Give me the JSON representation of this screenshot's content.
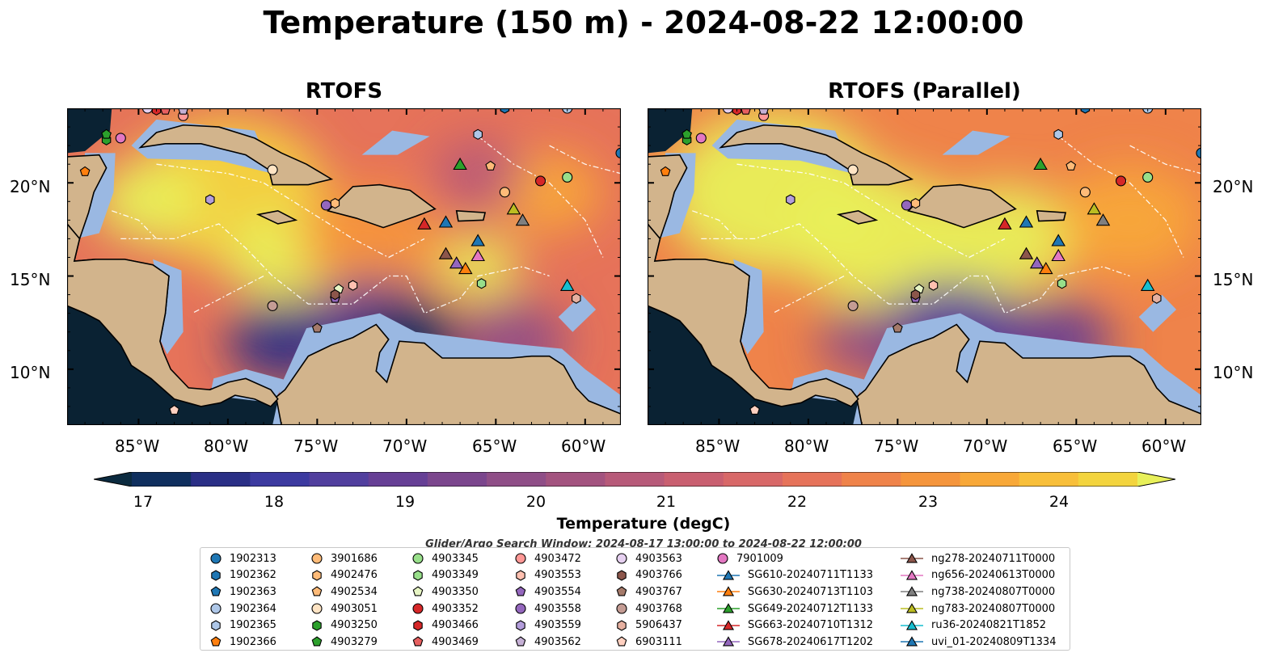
{
  "title": "Temperature (150 m) - 2024-08-22 12:00:00",
  "panels": [
    {
      "title": "RTOFS"
    },
    {
      "title": "RTOFS (Parallel)"
    }
  ],
  "colors": {
    "land": "#d2b48c",
    "shelf": "#9ab8e2",
    "deep": "#0a2233"
  },
  "colorbar": {
    "label": "Temperature (degC)",
    "min": 16.5,
    "max": 24.5,
    "ticks": [
      "17",
      "18",
      "19",
      "20",
      "21",
      "22",
      "23",
      "24"
    ],
    "colors": [
      "#0b2a3f",
      "#0f2f5e",
      "#2a2f86",
      "#3c3aa0",
      "#513f9e",
      "#663f95",
      "#7b468d",
      "#8f4e87",
      "#a3537f",
      "#b75a79",
      "#c95f70",
      "#d86868",
      "#e6735a",
      "#ef834a",
      "#f5953c",
      "#f8a838",
      "#f8bf3a",
      "#f3d43e",
      "#e8f05a"
    ]
  },
  "search_window": "Glider/Argo Search Window: 2024-08-17 13:00:00 to 2024-08-22 12:00:00",
  "chart_data": [
    {
      "type": "heatmap",
      "title": "RTOFS",
      "variable": "Temperature (150 m)",
      "units": "degC",
      "xlim": [
        -89,
        -58
      ],
      "ylim": [
        7,
        24
      ],
      "xticks": [
        "85°W",
        "80°W",
        "75°W",
        "70°W",
        "65°W",
        "60°W"
      ],
      "yticks": [
        "20°N",
        "15°N",
        "10°N"
      ],
      "blobs": [
        {
          "lon": -80.0,
          "lat": 19.5,
          "r": 5.5,
          "t": 24.0
        },
        {
          "lon": -84.5,
          "lat": 19.0,
          "r": 3.0,
          "t": 24.4
        },
        {
          "lon": -77.0,
          "lat": 16.0,
          "r": 3.2,
          "t": 24.6
        },
        {
          "lon": -72.0,
          "lat": 17.0,
          "r": 4.0,
          "t": 22.5
        },
        {
          "lon": -66.0,
          "lat": 15.5,
          "r": 2.3,
          "t": 24.6
        },
        {
          "lon": -62.0,
          "lat": 19.5,
          "r": 3.0,
          "t": 23.0
        },
        {
          "lon": -72.0,
          "lat": 12.0,
          "r": 4.0,
          "t": 19.0
        },
        {
          "lon": -70.0,
          "lat": 11.5,
          "r": 3.0,
          "t": 17.0
        },
        {
          "lon": -77.0,
          "lat": 11.5,
          "r": 3.0,
          "t": 17.5
        },
        {
          "lon": -64.0,
          "lat": 11.5,
          "r": 3.0,
          "t": 19.5
        },
        {
          "lon": -66.0,
          "lat": 20.5,
          "r": 2.5,
          "t": 20.5
        }
      ],
      "base_temp": 21.8
    },
    {
      "type": "heatmap",
      "title": "RTOFS (Parallel)",
      "variable": "Temperature (150 m)",
      "units": "degC",
      "xlim": [
        -89,
        -58
      ],
      "ylim": [
        7,
        24
      ],
      "xticks": [
        "85°W",
        "80°W",
        "75°W",
        "70°W",
        "65°W",
        "60°W"
      ],
      "yticks": [
        "20°N",
        "15°N",
        "10°N"
      ],
      "blobs": [
        {
          "lon": -82.0,
          "lat": 19.5,
          "r": 6.0,
          "t": 24.6
        },
        {
          "lon": -76.0,
          "lat": 17.0,
          "r": 5.0,
          "t": 24.6
        },
        {
          "lon": -69.0,
          "lat": 17.0,
          "r": 4.0,
          "t": 24.2
        },
        {
          "lon": -62.0,
          "lat": 18.0,
          "r": 4.0,
          "t": 23.2
        },
        {
          "lon": -72.0,
          "lat": 11.5,
          "r": 4.5,
          "t": 18.5
        },
        {
          "lon": -66.0,
          "lat": 11.5,
          "r": 3.0,
          "t": 19.0
        },
        {
          "lon": -77.0,
          "lat": 11.5,
          "r": 2.5,
          "t": 19.5
        }
      ],
      "base_temp": 22.3
    }
  ],
  "observations": [
    {
      "id": "1902313",
      "lon": -58.0,
      "lat": 21.6,
      "shape": "circle",
      "color": "#1f77b4"
    },
    {
      "id": "1902362",
      "lon": -64.5,
      "lat": 24.0,
      "shape": "hexagon",
      "color": "#1f77b4"
    },
    {
      "id": "1902363",
      "lon": -84.0,
      "lat": 24.0,
      "shape": "pentagon",
      "color": "#1f77b4"
    },
    {
      "id": "1902364",
      "lon": -61.0,
      "lat": 24.0,
      "shape": "circle",
      "color": "#aec7e8"
    },
    {
      "id": "1902365",
      "lon": -66.0,
      "lat": 22.6,
      "shape": "hexagon",
      "color": "#aec7e8"
    },
    {
      "id": "1902366",
      "lon": -88.0,
      "lat": 20.6,
      "shape": "pentagon",
      "color": "#ff7f0e"
    },
    {
      "id": "3901686",
      "lon": -64.5,
      "lat": 19.5,
      "shape": "circle",
      "color": "#ffbb78"
    },
    {
      "id": "4902476",
      "lon": -74.0,
      "lat": 18.9,
      "shape": "hexagon",
      "color": "#ffbb78"
    },
    {
      "id": "4902534",
      "lon": -65.3,
      "lat": 20.9,
      "shape": "pentagon",
      "color": "#ffbb78"
    },
    {
      "id": "4903051",
      "lon": -77.5,
      "lat": 20.7,
      "shape": "circle",
      "color": "#ffe4c4"
    },
    {
      "id": "4903250",
      "lon": -86.8,
      "lat": 22.3,
      "shape": "hexagon",
      "color": "#2ca02c"
    },
    {
      "id": "4903279",
      "lon": -86.8,
      "lat": 22.6,
      "shape": "pentagon",
      "color": "#2ca02c"
    },
    {
      "id": "4903345",
      "lon": -61.0,
      "lat": 20.3,
      "shape": "circle",
      "color": "#98df8a"
    },
    {
      "id": "4903349",
      "lon": -65.8,
      "lat": 14.6,
      "shape": "hexagon",
      "color": "#98df8a"
    },
    {
      "id": "4903350",
      "lon": -73.8,
      "lat": 14.3,
      "shape": "pentagon",
      "color": "#e7f5c4"
    },
    {
      "id": "4903352",
      "lon": -62.5,
      "lat": 20.1,
      "shape": "circle",
      "color": "#d62728"
    },
    {
      "id": "4903466",
      "lon": -84.0,
      "lat": 23.9,
      "shape": "hexagon",
      "color": "#d62728"
    },
    {
      "id": "4903469",
      "lon": -83.5,
      "lat": 23.9,
      "shape": "pentagon",
      "color": "#e66060"
    },
    {
      "id": "4903472",
      "lon": -82.5,
      "lat": 23.6,
      "shape": "circle",
      "color": "#ff9896"
    },
    {
      "id": "4903553",
      "lon": -73.0,
      "lat": 14.5,
      "shape": "hexagon",
      "color": "#ffc0b0"
    },
    {
      "id": "4903554",
      "lon": -74.0,
      "lat": 13.8,
      "shape": "pentagon",
      "color": "#9467bd"
    },
    {
      "id": "4903558",
      "lon": -74.5,
      "lat": 18.8,
      "shape": "circle",
      "color": "#9467bd"
    },
    {
      "id": "4903559",
      "lon": -81.0,
      "lat": 19.1,
      "shape": "hexagon",
      "color": "#b39ddb"
    },
    {
      "id": "4903562",
      "lon": -82.5,
      "lat": 23.9,
      "shape": "pentagon",
      "color": "#c5b0d5"
    },
    {
      "id": "4903563",
      "lon": -84.5,
      "lat": 24.0,
      "shape": "circle",
      "color": "#e6d0f0"
    },
    {
      "id": "4903766",
      "lon": -74.0,
      "lat": 14.0,
      "shape": "hexagon",
      "color": "#8c564b"
    },
    {
      "id": "4903767",
      "lon": -75.0,
      "lat": 12.2,
      "shape": "pentagon",
      "color": "#a57a6a"
    },
    {
      "id": "4903768",
      "lon": -77.5,
      "lat": 13.4,
      "shape": "circle",
      "color": "#c49c94"
    },
    {
      "id": "5906437",
      "lon": -60.5,
      "lat": 13.8,
      "shape": "hexagon",
      "color": "#e6b0a0"
    },
    {
      "id": "6903111",
      "lon": -83.0,
      "lat": 7.8,
      "shape": "pentagon",
      "color": "#ffd0c0"
    },
    {
      "id": "7901009",
      "lon": -86.0,
      "lat": 22.4,
      "shape": "circle",
      "color": "#e377c2"
    },
    {
      "id": "SG610-20240711T1133",
      "lon": -66.0,
      "lat": 16.9,
      "shape": "triangle",
      "color": "#1f77b4"
    },
    {
      "id": "SG630-20240713T1103",
      "lon": -66.7,
      "lat": 15.4,
      "shape": "triangle",
      "color": "#ff7f0e"
    },
    {
      "id": "SG649-20240712T1133",
      "lon": -67.0,
      "lat": 21.0,
      "shape": "triangle",
      "color": "#2ca02c"
    },
    {
      "id": "SG663-20240710T1312",
      "lon": -69.0,
      "lat": 17.8,
      "shape": "triangle",
      "color": "#d62728"
    },
    {
      "id": "SG678-20240617T1202",
      "lon": -67.2,
      "lat": 15.7,
      "shape": "triangle",
      "color": "#9467bd"
    },
    {
      "id": "ng278-20240711T0000",
      "lon": -67.8,
      "lat": 16.2,
      "shape": "triangle",
      "color": "#8c564b"
    },
    {
      "id": "ng656-20240613T0000",
      "lon": -66.0,
      "lat": 16.1,
      "shape": "triangle",
      "color": "#e377c2"
    },
    {
      "id": "ng738-20240807T0000",
      "lon": -63.5,
      "lat": 18.0,
      "shape": "triangle",
      "color": "#7f7f7f"
    },
    {
      "id": "ng783-20240807T0000",
      "lon": -64.0,
      "lat": 18.6,
      "shape": "triangle",
      "color": "#bcbd22"
    },
    {
      "id": "ru36-20240821T1852",
      "lon": -61.0,
      "lat": 14.5,
      "shape": "triangle",
      "color": "#17becf"
    },
    {
      "id": "uvi_01-20240809T1334",
      "lon": -67.8,
      "lat": 17.9,
      "shape": "triangle",
      "color": "#1f77b4"
    }
  ]
}
